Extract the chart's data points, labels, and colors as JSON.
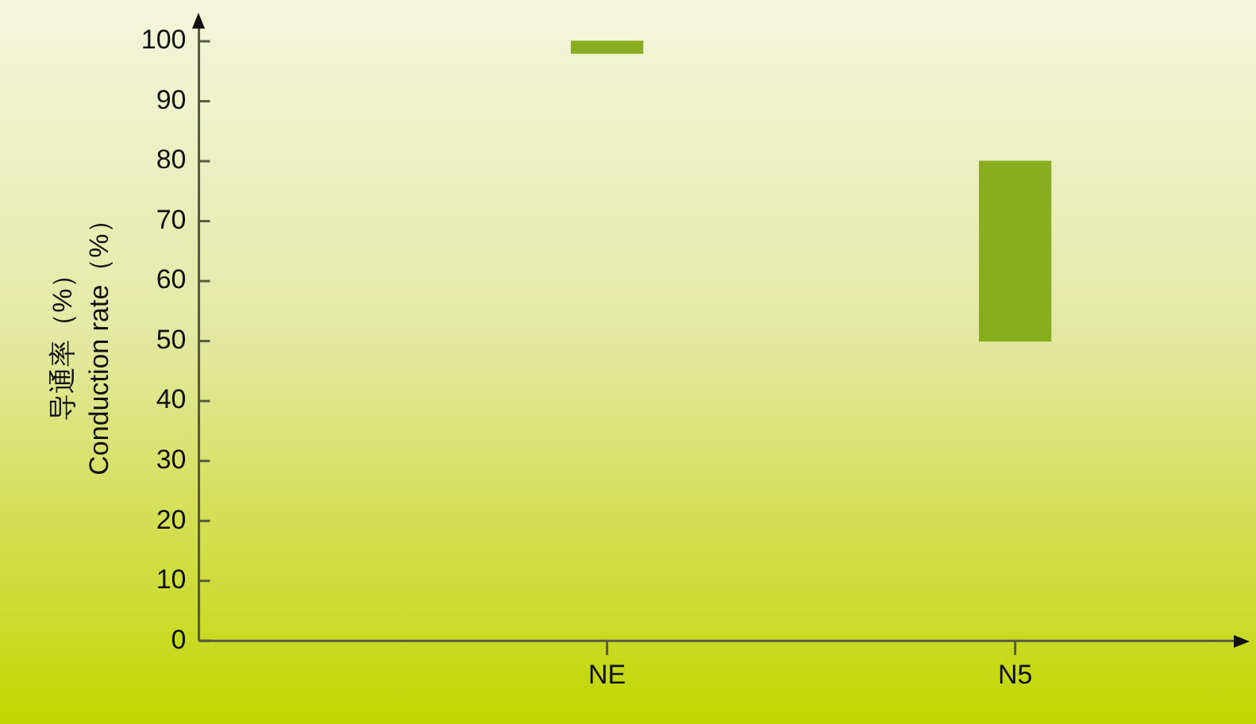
{
  "chart_data": {
    "type": "bar",
    "ylabel": "导通率（%）\nConduction rate（%）",
    "categories": [
      "NE",
      "N5"
    ],
    "values": [
      2,
      30
    ],
    "base": [
      98,
      50
    ],
    "color": "#8aad20",
    "ylim": [
      0,
      100
    ],
    "yticks": [
      0,
      10,
      20,
      30,
      40,
      50,
      60,
      70,
      80,
      90,
      100
    ],
    "grid": false,
    "legend": false
  }
}
